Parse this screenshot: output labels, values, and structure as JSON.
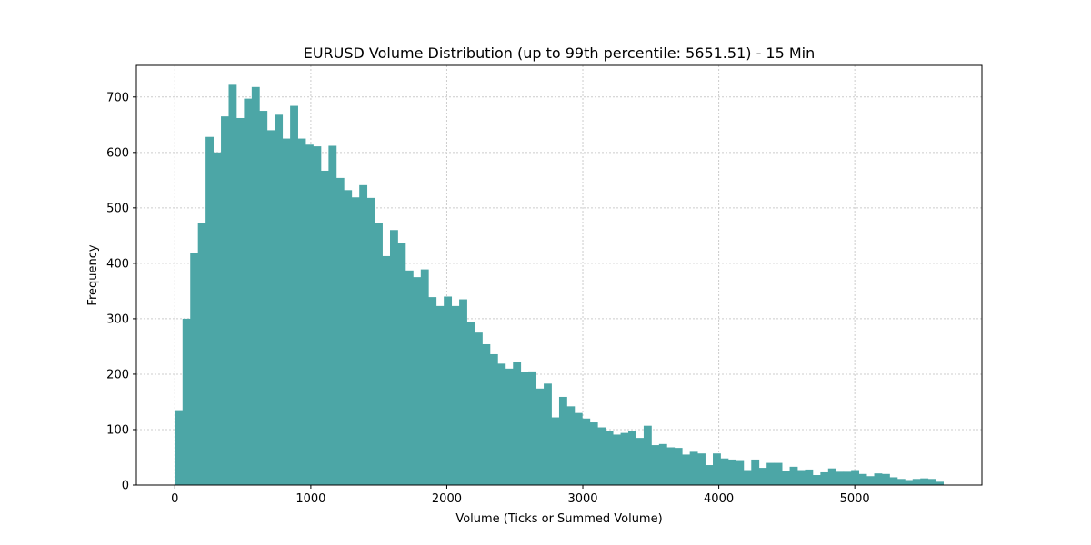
{
  "chart_data": {
    "type": "bar",
    "title": "EURUSD Volume Distribution (up to 99th percentile: 5651.51) - 15 Min",
    "xlabel": "Volume (Ticks or Summed Volume)",
    "ylabel": "Frequency",
    "xlim": [
      -283,
      5935
    ],
    "ylim": [
      0,
      757
    ],
    "xticks": [
      0,
      1000,
      2000,
      3000,
      4000,
      5000
    ],
    "yticks": [
      0,
      100,
      200,
      300,
      400,
      500,
      600,
      700
    ],
    "grid": true,
    "bar_color": "#4ca6a6",
    "bin_start": 0,
    "bin_width": 56.5151,
    "values": [
      135,
      300,
      418,
      472,
      628,
      600,
      665,
      722,
      662,
      697,
      718,
      675,
      640,
      668,
      625,
      684,
      625,
      614,
      611,
      567,
      612,
      554,
      532,
      519,
      541,
      518,
      473,
      413,
      460,
      436,
      387,
      375,
      389,
      339,
      323,
      340,
      323,
      335,
      294,
      275,
      254,
      236,
      219,
      210,
      222,
      204,
      205,
      174,
      183,
      122,
      159,
      142,
      130,
      120,
      113,
      104,
      97,
      91,
      94,
      97,
      85,
      107,
      72,
      74,
      68,
      67,
      55,
      60,
      57,
      36,
      57,
      48,
      46,
      45,
      27,
      46,
      31,
      40,
      40,
      26,
      33,
      27,
      28,
      18,
      23,
      30,
      24,
      24,
      27,
      20,
      16,
      21,
      20,
      14,
      11,
      9,
      11,
      12,
      11,
      6
    ]
  }
}
